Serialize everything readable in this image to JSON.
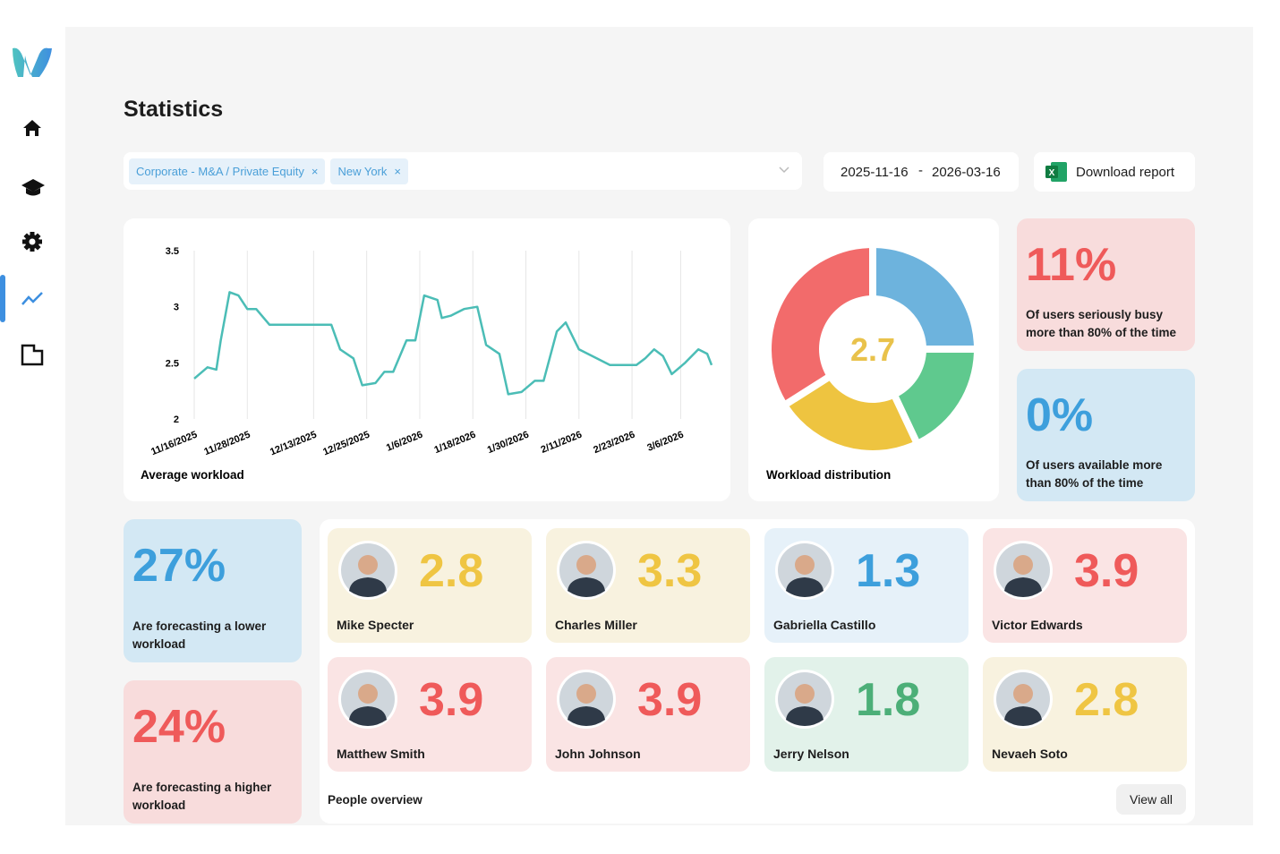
{
  "header": {
    "title": "Statistics"
  },
  "filters": {
    "chips": [
      "Corporate - M&A / Private Equity",
      "New York"
    ],
    "date_from": "2025-11-16",
    "date_separator": "-",
    "date_to": "2026-03-16",
    "download": "Download report"
  },
  "chart_data": [
    {
      "type": "line",
      "title": "Average workload",
      "color": "#4bbdb6",
      "x": [
        "2025-11-16",
        "2025-11-19",
        "2025-11-21",
        "2025-11-22",
        "2025-11-24",
        "2025-11-26",
        "2025-11-28",
        "2025-11-30",
        "2025-12-03",
        "2025-12-10",
        "2025-12-17",
        "2025-12-19",
        "2025-12-22",
        "2025-12-24",
        "2025-12-27",
        "2025-12-29",
        "2025-12-31",
        "2026-01-03",
        "2026-01-05",
        "2026-01-07",
        "2026-01-10",
        "2026-01-11",
        "2026-01-13",
        "2026-01-16",
        "2026-01-19",
        "2026-01-21",
        "2026-01-24",
        "2026-01-26",
        "2026-01-29",
        "2026-02-01",
        "2026-02-03",
        "2026-02-06",
        "2026-02-08",
        "2026-02-11",
        "2026-02-13",
        "2026-02-15",
        "2026-02-18",
        "2026-02-24",
        "2026-02-26",
        "2026-02-28",
        "2026-03-02",
        "2026-03-04",
        "2026-03-07",
        "2026-03-10",
        "2026-03-12",
        "2026-03-13"
      ],
      "values": [
        2.36,
        2.46,
        2.44,
        2.7,
        3.13,
        3.1,
        2.98,
        2.98,
        2.84,
        2.84,
        2.84,
        2.62,
        2.54,
        2.3,
        2.32,
        2.42,
        2.42,
        2.7,
        2.7,
        3.1,
        3.06,
        2.9,
        2.92,
        2.98,
        3.0,
        2.66,
        2.58,
        2.22,
        2.24,
        2.34,
        2.34,
        2.78,
        2.86,
        2.62,
        2.58,
        2.54,
        2.48,
        2.48,
        2.54,
        2.62,
        2.56,
        2.4,
        2.5,
        2.62,
        2.58,
        2.48
      ],
      "xlim": [
        "2025-11-16",
        "2026-03-13"
      ],
      "xticks": [
        {
          "value": "2025-11-16",
          "label": "11/16/2025"
        },
        {
          "value": "2025-11-28",
          "label": "11/28/2025"
        },
        {
          "value": "2025-12-13",
          "label": "12/13/2025"
        },
        {
          "value": "2025-12-25",
          "label": "12/25/2025"
        },
        {
          "value": "2026-01-06",
          "label": "1/6/2026"
        },
        {
          "value": "2026-01-18",
          "label": "1/18/2026"
        },
        {
          "value": "2026-01-30",
          "label": "1/30/2026"
        },
        {
          "value": "2026-02-11",
          "label": "2/11/2026"
        },
        {
          "value": "2026-02-23",
          "label": "2/23/2026"
        },
        {
          "value": "2026-03-06",
          "label": "3/6/2026"
        }
      ],
      "ylim": [
        2,
        3.5
      ],
      "yticks": [
        2,
        2.5,
        3,
        3.5
      ],
      "xgrid": true
    },
    {
      "type": "pie",
      "title": "Workload distribution",
      "center_value": 2.7,
      "values": [
        25,
        18,
        23,
        34
      ],
      "colors": [
        "#6db3dd",
        "#5fc98e",
        "#eec440",
        "#f26b6b"
      ]
    }
  ],
  "stats": [
    {
      "value": "11%",
      "text": "Of users seriously busy more than 80% of the time",
      "color": "#ef5a5a",
      "bg": "#f8dcdc"
    },
    {
      "value": "0%",
      "text": "Of users available more than 80% of the time",
      "color": "#3d9fdc",
      "bg": "#d3e8f4"
    },
    {
      "value": "27%",
      "text": "Are forecasting a lower workload",
      "color": "#3d9fdc",
      "bg": "#d3e8f4"
    },
    {
      "value": "24%",
      "text": "Are forecasting a higher workload",
      "color": "#ef5a5a",
      "bg": "#f8dcdc"
    }
  ],
  "people": {
    "title": "People overview",
    "view_all": "View all",
    "items": [
      {
        "name": "Mike Specter",
        "score": 2.8,
        "color": "#efc543",
        "bg": "#f8f2df"
      },
      {
        "name": "Charles Miller",
        "score": 3.3,
        "color": "#efc543",
        "bg": "#f8f2df"
      },
      {
        "name": "Gabriella Castillo",
        "score": 1.3,
        "color": "#3d9fdc",
        "bg": "#e6f1f9"
      },
      {
        "name": "Victor Edwards",
        "score": 3.9,
        "color": "#ef5a5a",
        "bg": "#fae4e4"
      },
      {
        "name": "Matthew Smith",
        "score": 3.9,
        "color": "#ef5a5a",
        "bg": "#fae4e4"
      },
      {
        "name": "John Johnson",
        "score": 3.9,
        "color": "#ef5a5a",
        "bg": "#fae4e4"
      },
      {
        "name": "Jerry Nelson",
        "score": 1.8,
        "color": "#4caf78",
        "bg": "#e2f2ea"
      },
      {
        "name": "Nevaeh Soto",
        "score": 2.8,
        "color": "#efc543",
        "bg": "#f8f2df"
      }
    ]
  }
}
